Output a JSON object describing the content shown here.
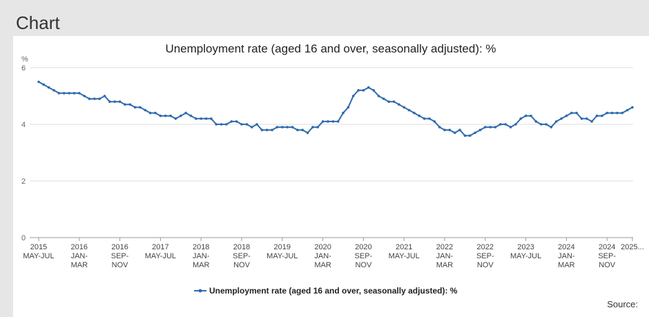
{
  "header": {
    "title": "Chart"
  },
  "source_label": "Source:",
  "chart_data": {
    "type": "line",
    "title": "Unemployment rate (aged 16 and over, seasonally adjusted): %",
    "ylabel": "%",
    "ylim": [
      0,
      6
    ],
    "yticks": [
      0,
      2,
      4,
      6
    ],
    "grid": true,
    "legend_placement": "bottom",
    "color": "#2e6bad",
    "xtick_labels": [
      {
        "index": 0,
        "year": "2015",
        "period": "MAY-JUL"
      },
      {
        "index": 8,
        "year": "2016",
        "period": "JAN-\nMAR"
      },
      {
        "index": 16,
        "year": "2016",
        "period": "SEP-\nNOV"
      },
      {
        "index": 24,
        "year": "2017",
        "period": "MAY-JUL"
      },
      {
        "index": 32,
        "year": "2018",
        "period": "JAN-\nMAR"
      },
      {
        "index": 40,
        "year": "2018",
        "period": "SEP-\nNOV"
      },
      {
        "index": 48,
        "year": "2019",
        "period": "MAY-JUL"
      },
      {
        "index": 56,
        "year": "2020",
        "period": "JAN-\nMAR"
      },
      {
        "index": 64,
        "year": "2020",
        "period": "SEP-\nNOV"
      },
      {
        "index": 72,
        "year": "2021",
        "period": "MAY-JUL"
      },
      {
        "index": 80,
        "year": "2022",
        "period": "JAN-\nMAR"
      },
      {
        "index": 88,
        "year": "2022",
        "period": "SEP-\nNOV"
      },
      {
        "index": 96,
        "year": "2023",
        "period": "MAY-JUL"
      },
      {
        "index": 104,
        "year": "2024",
        "period": "JAN-\nMAR"
      },
      {
        "index": 112,
        "year": "2024",
        "period": "SEP-\nNOV"
      },
      {
        "index": 117,
        "year": "2025...",
        "period": ""
      }
    ],
    "series": [
      {
        "name": "Unemployment rate (aged 16 and over, seasonally adjusted): %",
        "values": [
          5.5,
          5.4,
          5.3,
          5.2,
          5.1,
          5.1,
          5.1,
          5.1,
          5.1,
          5.0,
          4.9,
          4.9,
          4.9,
          5.0,
          4.8,
          4.8,
          4.8,
          4.7,
          4.7,
          4.6,
          4.6,
          4.5,
          4.4,
          4.4,
          4.3,
          4.3,
          4.3,
          4.2,
          4.3,
          4.4,
          4.3,
          4.2,
          4.2,
          4.2,
          4.2,
          4.0,
          4.0,
          4.0,
          4.1,
          4.1,
          4.0,
          4.0,
          3.9,
          4.0,
          3.8,
          3.8,
          3.8,
          3.9,
          3.9,
          3.9,
          3.9,
          3.8,
          3.8,
          3.7,
          3.9,
          3.9,
          4.1,
          4.1,
          4.1,
          4.1,
          4.4,
          4.6,
          5.0,
          5.2,
          5.2,
          5.3,
          5.2,
          5.0,
          4.9,
          4.8,
          4.8,
          4.7,
          4.6,
          4.5,
          4.4,
          4.3,
          4.2,
          4.2,
          4.1,
          3.9,
          3.8,
          3.8,
          3.7,
          3.8,
          3.6,
          3.6,
          3.7,
          3.8,
          3.9,
          3.9,
          3.9,
          4.0,
          4.0,
          3.9,
          4.0,
          4.2,
          4.3,
          4.3,
          4.1,
          4.0,
          4.0,
          3.9,
          4.1,
          4.2,
          4.3,
          4.4,
          4.4,
          4.2,
          4.2,
          4.1,
          4.3,
          4.3,
          4.4,
          4.4,
          4.4,
          4.4,
          4.5,
          4.6
        ]
      }
    ]
  }
}
